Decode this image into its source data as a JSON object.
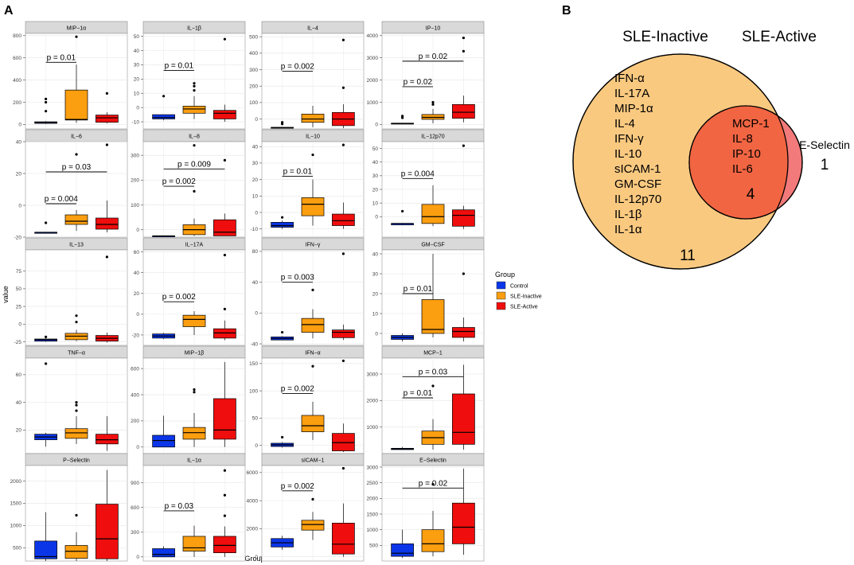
{
  "panel_a_label": "A",
  "panel_b_label": "B",
  "y_axis_label": "value",
  "x_axis_label": "Group",
  "legend": {
    "title": "Group",
    "entries": [
      {
        "name": "Control",
        "color": "#0b36e8"
      },
      {
        "name": "SLE-Inactive",
        "color": "#fb9e0f"
      },
      {
        "name": "SLE-Active",
        "color": "#ef0d0d"
      }
    ]
  },
  "chart_data": [
    {
      "type": "box",
      "title": "MIP−1α",
      "ylim": [
        -40,
        820
      ],
      "yticks": [
        0,
        200,
        400,
        600,
        800
      ],
      "groups": [
        {
          "q1": 10,
          "med": 18,
          "q3": 24,
          "wlo": 5,
          "whi": 30,
          "out": [
            120,
            200,
            230
          ]
        },
        {
          "q1": 40,
          "med": 45,
          "q3": 310,
          "wlo": 15,
          "whi": 540,
          "out": [
            790
          ]
        },
        {
          "q1": 20,
          "med": 60,
          "q3": 85,
          "wlo": 10,
          "whi": 110,
          "out": [
            280
          ]
        }
      ],
      "pvals": [
        {
          "from": 0,
          "to": 1,
          "text": "p = 0.01",
          "y": 560
        }
      ]
    },
    {
      "type": "box",
      "title": "IL−1β",
      "ylim": [
        -15,
        52
      ],
      "yticks": [
        -10,
        0,
        10,
        20,
        30,
        40,
        50
      ],
      "groups": [
        {
          "q1": -8,
          "med": -7,
          "q3": -5,
          "wlo": -9,
          "whi": -5,
          "out": [
            8
          ]
        },
        {
          "q1": -4,
          "med": -1,
          "q3": 1,
          "wlo": -8,
          "whi": 8,
          "out": [
            12,
            15,
            17
          ]
        },
        {
          "q1": -8,
          "med": -4,
          "q3": -2,
          "wlo": -10,
          "whi": 2,
          "out": [
            48
          ]
        }
      ],
      "pvals": [
        {
          "from": 0,
          "to": 1,
          "text": "p = 0.01",
          "y": 26
        }
      ]
    },
    {
      "type": "box",
      "title": "IL−4",
      "ylim": [
        -60,
        520
      ],
      "yticks": [
        0,
        100,
        200,
        300,
        400,
        500
      ],
      "groups": [
        {
          "q1": -55,
          "med": -53,
          "q3": -50,
          "wlo": -56,
          "whi": -48,
          "out": [
            -30,
            -20
          ]
        },
        {
          "q1": -20,
          "med": 0,
          "q3": 30,
          "wlo": -50,
          "whi": 80,
          "out": []
        },
        {
          "q1": -40,
          "med": 0,
          "q3": 40,
          "wlo": -56,
          "whi": 90,
          "out": [
            190,
            480
          ]
        }
      ],
      "pvals": [
        {
          "from": 0,
          "to": 1,
          "text": "p = 0.002",
          "y": 290
        }
      ]
    },
    {
      "type": "box",
      "title": "IP−10",
      "ylim": [
        -200,
        4100
      ],
      "yticks": [
        0,
        1000,
        2000,
        3000,
        4000
      ],
      "groups": [
        {
          "q1": 30,
          "med": 40,
          "q3": 60,
          "wlo": 20,
          "whi": 70,
          "out": [
            300,
            380
          ]
        },
        {
          "q1": 230,
          "med": 320,
          "q3": 450,
          "wlo": 50,
          "whi": 700,
          "out": [
            900,
            1000
          ]
        },
        {
          "q1": 280,
          "med": 550,
          "q3": 900,
          "wlo": 100,
          "whi": 1300,
          "out": [
            3300,
            3900
          ]
        }
      ],
      "pvals": [
        {
          "from": 0,
          "to": 1,
          "text": "p = 0.02",
          "y": 1700
        },
        {
          "from": 0,
          "to": 2,
          "text": "p = 0.02",
          "y": 2850
        }
      ]
    },
    {
      "type": "box",
      "title": "IL−6",
      "ylim": [
        -20,
        40
      ],
      "yticks": [
        -20,
        0,
        20,
        40
      ],
      "groups": [
        {
          "q1": -17,
          "med": -17,
          "q3": -17,
          "wlo": -17,
          "whi": -17,
          "out": [
            -11
          ]
        },
        {
          "q1": -12,
          "med": -10,
          "q3": -6,
          "wlo": -16,
          "whi": -3,
          "out": [
            32
          ]
        },
        {
          "q1": -15,
          "med": -12,
          "q3": -8,
          "wlo": -17,
          "whi": 3,
          "out": [
            38
          ]
        }
      ],
      "pvals": [
        {
          "from": 0,
          "to": 1,
          "text": "p = 0.004",
          "y": 1
        },
        {
          "from": 0,
          "to": 2,
          "text": "p = 0.03",
          "y": 21
        }
      ]
    },
    {
      "type": "box",
      "title": "IL−8",
      "ylim": [
        -30,
        355
      ],
      "yticks": [
        0,
        100,
        200,
        300
      ],
      "groups": [
        {
          "q1": -25,
          "med": -25,
          "q3": -25,
          "wlo": -25,
          "whi": -25,
          "out": []
        },
        {
          "q1": -20,
          "med": 0,
          "q3": 20,
          "wlo": -25,
          "whi": 45,
          "out": [
            155,
            340
          ]
        },
        {
          "q1": -25,
          "med": -10,
          "q3": 40,
          "wlo": -25,
          "whi": 65,
          "out": [
            280
          ]
        }
      ],
      "pvals": [
        {
          "from": 0,
          "to": 1,
          "text": "p = 0.002",
          "y": 175
        },
        {
          "from": 0,
          "to": 2,
          "text": "p = 0.009",
          "y": 245
        }
      ]
    },
    {
      "type": "box",
      "title": "IL−10",
      "ylim": [
        -15,
        43
      ],
      "yticks": [
        -10,
        0,
        10,
        20,
        30,
        40
      ],
      "groups": [
        {
          "q1": -9,
          "med": -8,
          "q3": -6,
          "wlo": -10,
          "whi": -5,
          "out": [
            -3
          ]
        },
        {
          "q1": -2,
          "med": 5,
          "q3": 9,
          "wlo": -8,
          "whi": 20,
          "out": [
            35
          ]
        },
        {
          "q1": -8,
          "med": -5,
          "q3": -1,
          "wlo": -10,
          "whi": 6,
          "out": [
            41
          ]
        }
      ],
      "pvals": [
        {
          "from": 0,
          "to": 1,
          "text": "p = 0.01",
          "y": 22
        }
      ]
    },
    {
      "type": "box",
      "title": "IL−12p70",
      "ylim": [
        -15,
        55
      ],
      "yticks": [
        0,
        10,
        20,
        30,
        40,
        50
      ],
      "groups": [
        {
          "q1": -6,
          "med": -5,
          "q3": -5,
          "wlo": -6,
          "whi": -5,
          "out": [
            4
          ]
        },
        {
          "q1": -5,
          "med": 0,
          "q3": 9,
          "wlo": -7,
          "whi": 23,
          "out": []
        },
        {
          "q1": -7,
          "med": 1,
          "q3": 5,
          "wlo": -9,
          "whi": 8,
          "out": [
            52
          ]
        }
      ],
      "pvals": [
        {
          "from": 0,
          "to": 1,
          "text": "p = 0.004",
          "y": 28
        }
      ]
    },
    {
      "type": "box",
      "title": "IL−13",
      "ylim": [
        -30,
        105
      ],
      "yticks": [
        -25,
        0,
        25,
        50,
        75
      ],
      "groups": [
        {
          "q1": -24,
          "med": -22,
          "q3": -21,
          "wlo": -25,
          "whi": -20,
          "out": [
            -18
          ]
        },
        {
          "q1": -22,
          "med": -17,
          "q3": -13,
          "wlo": -24,
          "whi": -8,
          "out": [
            3,
            12
          ]
        },
        {
          "q1": -24,
          "med": -20,
          "q3": -16,
          "wlo": -26,
          "whi": -12,
          "out": [
            95
          ]
        }
      ],
      "pvals": []
    },
    {
      "type": "box",
      "title": "IL−17A",
      "ylim": [
        -30,
        62
      ],
      "yticks": [
        -20,
        0,
        20,
        40,
        60
      ],
      "groups": [
        {
          "q1": -23,
          "med": -21,
          "q3": -19,
          "wlo": -24,
          "whi": -18,
          "out": []
        },
        {
          "q1": -12,
          "med": -5,
          "q3": -1,
          "wlo": -20,
          "whi": 3,
          "out": []
        },
        {
          "q1": -23,
          "med": -18,
          "q3": -14,
          "wlo": -25,
          "whi": -6,
          "out": [
            5,
            57
          ]
        }
      ],
      "pvals": [
        {
          "from": 0,
          "to": 1,
          "text": "p = 0.002",
          "y": 12
        }
      ]
    },
    {
      "type": "box",
      "title": "IFN−γ",
      "ylim": [
        -42,
        82
      ],
      "yticks": [
        -40,
        0,
        40,
        80
      ],
      "groups": [
        {
          "q1": -35,
          "med": -33,
          "q3": -31,
          "wlo": -35,
          "whi": -30,
          "out": [
            -25
          ]
        },
        {
          "q1": -25,
          "med": -15,
          "q3": -7,
          "wlo": -33,
          "whi": 5,
          "out": [
            30
          ]
        },
        {
          "q1": -32,
          "med": -25,
          "q3": -22,
          "wlo": -35,
          "whi": -15,
          "out": [
            77
          ]
        }
      ],
      "pvals": [
        {
          "from": 0,
          "to": 1,
          "text": "p = 0.003",
          "y": 40
        }
      ]
    },
    {
      "type": "box",
      "title": "GM−CSF",
      "ylim": [
        -6,
        42
      ],
      "yticks": [
        0,
        10,
        20,
        30,
        40
      ],
      "groups": [
        {
          "q1": -3,
          "med": -2,
          "q3": -1,
          "wlo": -4,
          "whi": 0,
          "out": []
        },
        {
          "q1": 0,
          "med": 2,
          "q3": 17,
          "wlo": -2,
          "whi": 40,
          "out": []
        },
        {
          "q1": -2,
          "med": 1,
          "q3": 3,
          "wlo": -4,
          "whi": 8,
          "out": [
            30
          ]
        }
      ],
      "pvals": [
        {
          "from": 0,
          "to": 1,
          "text": "p = 0.01",
          "y": 20
        }
      ]
    },
    {
      "type": "box",
      "title": "TNF−α",
      "ylim": [
        3,
        72
      ],
      "yticks": [
        20,
        40,
        60
      ],
      "groups": [
        {
          "q1": 13,
          "med": 15,
          "q3": 17,
          "wlo": 8,
          "whi": 18,
          "out": [
            68
          ]
        },
        {
          "q1": 14,
          "med": 18,
          "q3": 21,
          "wlo": 10,
          "whi": 30,
          "out": [
            34,
            38,
            40
          ]
        },
        {
          "q1": 10,
          "med": 13,
          "q3": 17,
          "wlo": 5,
          "whi": 30,
          "out": []
        }
      ],
      "pvals": []
    },
    {
      "type": "box",
      "title": "MIP−1β",
      "ylim": [
        -50,
        680
      ],
      "yticks": [
        0,
        200,
        400,
        600
      ],
      "groups": [
        {
          "q1": 0,
          "med": 50,
          "q3": 90,
          "wlo": 0,
          "whi": 240,
          "out": []
        },
        {
          "q1": 60,
          "med": 110,
          "q3": 150,
          "wlo": 0,
          "whi": 260,
          "out": [
            420,
            440
          ]
        },
        {
          "q1": 60,
          "med": 130,
          "q3": 370,
          "wlo": 0,
          "whi": 650,
          "out": []
        }
      ],
      "pvals": []
    },
    {
      "type": "box",
      "title": "IFN−α",
      "ylim": [
        -15,
        160
      ],
      "yticks": [
        0,
        50,
        100,
        150
      ],
      "groups": [
        {
          "q1": -2,
          "med": 1,
          "q3": 4,
          "wlo": -4,
          "whi": 6,
          "out": [
            15
          ]
        },
        {
          "q1": 25,
          "med": 36,
          "q3": 55,
          "wlo": 10,
          "whi": 80,
          "out": [
            145
          ]
        },
        {
          "q1": -10,
          "med": 5,
          "q3": 22,
          "wlo": -12,
          "whi": 40,
          "out": [
            155
          ]
        }
      ],
      "pvals": [
        {
          "from": 0,
          "to": 1,
          "text": "p = 0.002",
          "y": 95
        }
      ]
    },
    {
      "type": "box",
      "title": "MCP−1",
      "ylim": [
        0,
        3600
      ],
      "yticks": [
        1000,
        2000,
        3000
      ],
      "groups": [
        {
          "q1": 150,
          "med": 180,
          "q3": 200,
          "wlo": 150,
          "whi": 250,
          "out": []
        },
        {
          "q1": 350,
          "med": 600,
          "q3": 850,
          "wlo": 150,
          "whi": 1300,
          "out": [
            2550
          ]
        },
        {
          "q1": 350,
          "med": 800,
          "q3": 2250,
          "wlo": 150,
          "whi": 3350,
          "out": []
        }
      ],
      "pvals": [
        {
          "from": 0,
          "to": 1,
          "text": "p = 0.01",
          "y": 2100
        },
        {
          "from": 0,
          "to": 2,
          "text": "p = 0.03",
          "y": 2900
        }
      ]
    },
    {
      "type": "box",
      "title": "P−Selectin",
      "ylim": [
        200,
        2350
      ],
      "yticks": [
        500,
        1000,
        1500,
        2000
      ],
      "groups": [
        {
          "q1": 250,
          "med": 300,
          "q3": 650,
          "wlo": 200,
          "whi": 1300,
          "out": []
        },
        {
          "q1": 260,
          "med": 420,
          "q3": 550,
          "wlo": 200,
          "whi": 850,
          "out": [
            1230
          ]
        },
        {
          "q1": 250,
          "med": 700,
          "q3": 1480,
          "wlo": 200,
          "whi": 2250,
          "out": []
        }
      ],
      "pvals": []
    },
    {
      "type": "box",
      "title": "IL−1α",
      "ylim": [
        -50,
        1110
      ],
      "yticks": [
        0,
        300,
        600,
        900
      ],
      "groups": [
        {
          "q1": 0,
          "med": 30,
          "q3": 100,
          "wlo": 0,
          "whi": 130,
          "out": []
        },
        {
          "q1": 70,
          "med": 110,
          "q3": 250,
          "wlo": 0,
          "whi": 380,
          "out": []
        },
        {
          "q1": 50,
          "med": 140,
          "q3": 250,
          "wlo": 0,
          "whi": 370,
          "out": [
            500,
            750,
            1050
          ]
        }
      ],
      "pvals": [
        {
          "from": 0,
          "to": 1,
          "text": "p = 0.03",
          "y": 560
        }
      ]
    },
    {
      "type": "box",
      "title": "sICAM−1",
      "ylim": [
        -300,
        6500
      ],
      "yticks": [
        0,
        2000,
        4000,
        6000
      ],
      "groups": [
        {
          "q1": 700,
          "med": 1000,
          "q3": 1300,
          "wlo": 500,
          "whi": 1500,
          "out": []
        },
        {
          "q1": 1900,
          "med": 2300,
          "q3": 2600,
          "wlo": 1200,
          "whi": 3200,
          "out": [
            4100
          ]
        },
        {
          "q1": 200,
          "med": 900,
          "q3": 2400,
          "wlo": 0,
          "whi": 3800,
          "out": [
            6300
          ]
        }
      ],
      "pvals": [
        {
          "from": 0,
          "to": 1,
          "text": "p = 0.002",
          "y": 4700
        }
      ]
    },
    {
      "type": "box",
      "title": "E−Selectin",
      "ylim": [
        0,
        3050
      ],
      "yticks": [
        500,
        1000,
        1500,
        2000,
        2500,
        3000
      ],
      "groups": [
        {
          "q1": 150,
          "med": 250,
          "q3": 550,
          "wlo": 100,
          "whi": 1000,
          "out": []
        },
        {
          "q1": 300,
          "med": 550,
          "q3": 1000,
          "wlo": 150,
          "whi": 1600,
          "out": [
            2450
          ]
        },
        {
          "q1": 550,
          "med": 1080,
          "q3": 1850,
          "wlo": 200,
          "whi": 2950,
          "out": []
        }
      ],
      "pvals": [
        {
          "from": 0,
          "to": 2,
          "text": "p = 0.02",
          "y": 2330
        }
      ]
    }
  ],
  "venn": {
    "labels": {
      "inactive": "SLE-Inactive",
      "active": "SLE-Active"
    },
    "inactive_only_items": [
      "IFN-α",
      "IL-17A",
      "MIP-1α",
      "IL-4",
      "IFN-γ",
      "IL-10",
      "sICAM-1",
      "GM-CSF",
      "IL-12p70",
      "IL-1β",
      "IL-1α"
    ],
    "inactive_only_count": "11",
    "shared_items": [
      "MCP-1",
      "IL-8",
      "IP-10",
      "IL-6"
    ],
    "shared_count": "4",
    "active_only_items": [
      "E-Selectin"
    ],
    "active_only_count": "1",
    "colors": {
      "inactive": "#fac980",
      "active": "#f27a7a",
      "overlap": "#f26542"
    }
  }
}
